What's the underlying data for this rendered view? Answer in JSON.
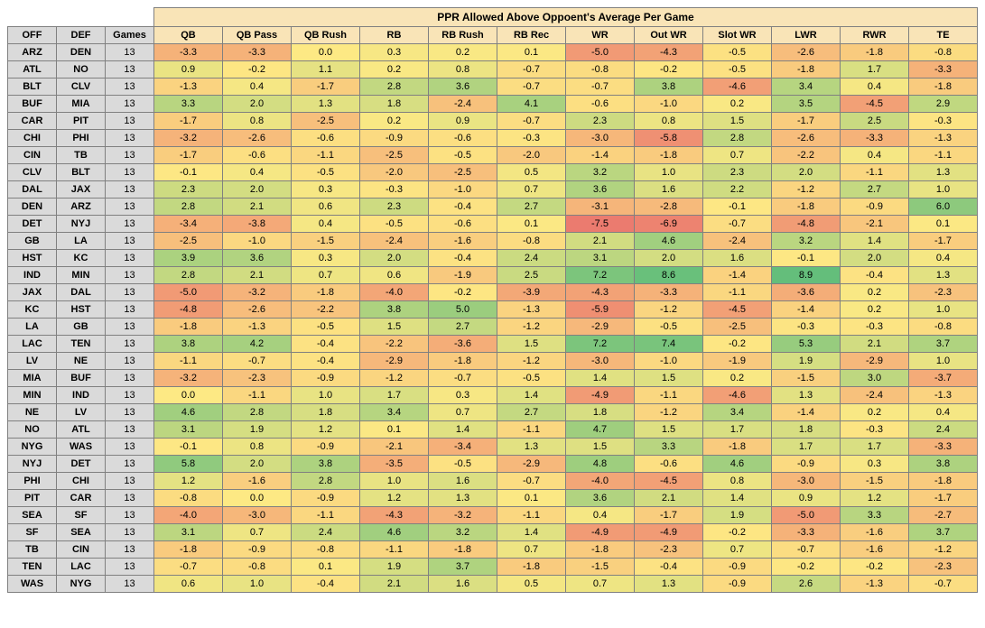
{
  "title": "PPR Allowed Above Oppoent's Average Per Game",
  "leftHeaders": [
    "OFF",
    "DEF",
    "Games"
  ],
  "dataHeaders": [
    "QB",
    "QB Pass",
    "QB Rush",
    "RB",
    "RB Rush",
    "RB Rec",
    "WR",
    "Out WR",
    "Slot WR",
    "LWR",
    "RWR",
    "TE"
  ],
  "colorScale": {
    "min": -9,
    "max": 9,
    "stops": [
      {
        "v": -9,
        "c": "#e8696b"
      },
      {
        "v": -4,
        "c": "#f3a677"
      },
      {
        "v": 0,
        "c": "#fde984"
      },
      {
        "v": 4,
        "c": "#a9d17f"
      },
      {
        "v": 9,
        "c": "#63be7b"
      }
    ]
  },
  "rows": [
    {
      "off": "ARZ",
      "def": "DEN",
      "games": 13,
      "vals": [
        -3.3,
        -3.3,
        0.0,
        0.3,
        0.2,
        0.1,
        -5.0,
        -4.3,
        -0.5,
        -2.6,
        -1.8,
        -0.8
      ]
    },
    {
      "off": "ATL",
      "def": "NO",
      "games": 13,
      "vals": [
        0.9,
        -0.2,
        1.1,
        0.2,
        0.8,
        -0.7,
        -0.8,
        -0.2,
        -0.5,
        -1.8,
        1.7,
        -3.3
      ]
    },
    {
      "off": "BLT",
      "def": "CLV",
      "games": 13,
      "vals": [
        -1.3,
        0.4,
        -1.7,
        2.8,
        3.6,
        -0.7,
        -0.7,
        3.8,
        -4.6,
        3.4,
        0.4,
        -1.8
      ]
    },
    {
      "off": "BUF",
      "def": "MIA",
      "games": 13,
      "vals": [
        3.3,
        2.0,
        1.3,
        1.8,
        -2.4,
        4.1,
        -0.6,
        -1.0,
        0.2,
        3.5,
        -4.5,
        2.9
      ]
    },
    {
      "off": "CAR",
      "def": "PIT",
      "games": 13,
      "vals": [
        -1.7,
        0.8,
        -2.5,
        0.2,
        0.9,
        -0.7,
        2.3,
        0.8,
        1.5,
        -1.7,
        2.5,
        -0.3
      ]
    },
    {
      "off": "CHI",
      "def": "PHI",
      "games": 13,
      "vals": [
        -3.2,
        -2.6,
        -0.6,
        -0.9,
        -0.6,
        -0.3,
        -3.0,
        -5.8,
        2.8,
        -2.6,
        -3.3,
        -1.3
      ]
    },
    {
      "off": "CIN",
      "def": "TB",
      "games": 13,
      "vals": [
        -1.7,
        -0.6,
        -1.1,
        -2.5,
        -0.5,
        -2.0,
        -1.4,
        -1.8,
        0.7,
        -2.2,
        0.4,
        -1.1
      ]
    },
    {
      "off": "CLV",
      "def": "BLT",
      "games": 13,
      "vals": [
        -0.1,
        0.4,
        -0.5,
        -2.0,
        -2.5,
        0.5,
        3.2,
        1.0,
        2.3,
        2.0,
        -1.1,
        1.3
      ]
    },
    {
      "off": "DAL",
      "def": "JAX",
      "games": 13,
      "vals": [
        2.3,
        2.0,
        0.3,
        -0.3,
        -1.0,
        0.7,
        3.6,
        1.6,
        2.2,
        -1.2,
        2.7,
        1.0
      ]
    },
    {
      "off": "DEN",
      "def": "ARZ",
      "games": 13,
      "vals": [
        2.8,
        2.1,
        0.6,
        2.3,
        -0.4,
        2.7,
        -3.1,
        -2.8,
        -0.1,
        -1.8,
        -0.9,
        6.0
      ]
    },
    {
      "off": "DET",
      "def": "NYJ",
      "games": 13,
      "vals": [
        -3.4,
        -3.8,
        0.4,
        -0.5,
        -0.6,
        0.1,
        -7.5,
        -6.9,
        -0.7,
        -4.8,
        -2.1,
        0.1
      ]
    },
    {
      "off": "GB",
      "def": "LA",
      "games": 13,
      "vals": [
        -2.5,
        -1.0,
        -1.5,
        -2.4,
        -1.6,
        -0.8,
        2.1,
        4.6,
        -2.4,
        3.2,
        1.4,
        -1.7
      ]
    },
    {
      "off": "HST",
      "def": "KC",
      "games": 13,
      "vals": [
        3.9,
        3.6,
        0.3,
        2.0,
        -0.4,
        2.4,
        3.1,
        2.0,
        1.6,
        -0.1,
        2.0,
        0.4
      ]
    },
    {
      "off": "IND",
      "def": "MIN",
      "games": 13,
      "vals": [
        2.8,
        2.1,
        0.7,
        0.6,
        -1.9,
        2.5,
        7.2,
        8.6,
        -1.4,
        8.9,
        -0.4,
        1.3
      ]
    },
    {
      "off": "JAX",
      "def": "DAL",
      "games": 13,
      "vals": [
        -5.0,
        -3.2,
        -1.8,
        -4.0,
        -0.2,
        -3.9,
        -4.3,
        -3.3,
        -1.1,
        -3.6,
        0.2,
        -2.3
      ]
    },
    {
      "off": "KC",
      "def": "HST",
      "games": 13,
      "vals": [
        -4.8,
        -2.6,
        -2.2,
        3.8,
        5.0,
        -1.3,
        -5.9,
        -1.2,
        -4.5,
        -1.4,
        0.2,
        1.0
      ]
    },
    {
      "off": "LA",
      "def": "GB",
      "games": 13,
      "vals": [
        -1.8,
        -1.3,
        -0.5,
        1.5,
        2.7,
        -1.2,
        -2.9,
        -0.5,
        -2.5,
        -0.3,
        -0.3,
        -0.8
      ]
    },
    {
      "off": "LAC",
      "def": "TEN",
      "games": 13,
      "vals": [
        3.8,
        4.2,
        -0.4,
        -2.2,
        -3.6,
        1.5,
        7.2,
        7.4,
        -0.2,
        5.3,
        2.1,
        3.7
      ]
    },
    {
      "off": "LV",
      "def": "NE",
      "games": 13,
      "vals": [
        -1.1,
        -0.7,
        -0.4,
        -2.9,
        -1.8,
        -1.2,
        -3.0,
        -1.0,
        -1.9,
        1.9,
        -2.9,
        1.0
      ]
    },
    {
      "off": "MIA",
      "def": "BUF",
      "games": 13,
      "vals": [
        -3.2,
        -2.3,
        -0.9,
        -1.2,
        -0.7,
        -0.5,
        1.4,
        1.5,
        0.2,
        -1.5,
        3.0,
        -3.7
      ]
    },
    {
      "off": "MIN",
      "def": "IND",
      "games": 13,
      "vals": [
        0.0,
        -1.1,
        1.0,
        1.7,
        0.3,
        1.4,
        -4.9,
        -1.1,
        -4.6,
        1.3,
        -2.4,
        -1.3
      ]
    },
    {
      "off": "NE",
      "def": "LV",
      "games": 13,
      "vals": [
        4.6,
        2.8,
        1.8,
        3.4,
        0.7,
        2.7,
        1.8,
        -1.2,
        3.4,
        -1.4,
        0.2,
        0.4
      ]
    },
    {
      "off": "NO",
      "def": "ATL",
      "games": 13,
      "vals": [
        3.1,
        1.9,
        1.2,
        0.1,
        1.4,
        -1.1,
        4.7,
        1.5,
        1.7,
        1.8,
        -0.3,
        2.4
      ]
    },
    {
      "off": "NYG",
      "def": "WAS",
      "games": 13,
      "vals": [
        -0.1,
        0.8,
        -0.9,
        -2.1,
        -3.4,
        1.3,
        1.5,
        3.3,
        -1.8,
        1.7,
        1.7,
        -3.3
      ]
    },
    {
      "off": "NYJ",
      "def": "DET",
      "games": 13,
      "vals": [
        5.8,
        2.0,
        3.8,
        -3.5,
        -0.5,
        -2.9,
        4.8,
        -0.6,
        4.6,
        -0.9,
        0.3,
        3.8
      ]
    },
    {
      "off": "PHI",
      "def": "CHI",
      "games": 13,
      "vals": [
        1.2,
        -1.6,
        2.8,
        1.0,
        1.6,
        -0.7,
        -4.0,
        -4.5,
        0.8,
        -3.0,
        -1.5,
        -1.8
      ]
    },
    {
      "off": "PIT",
      "def": "CAR",
      "games": 13,
      "vals": [
        -0.8,
        0.0,
        -0.9,
        1.2,
        1.3,
        0.1,
        3.6,
        2.1,
        1.4,
        0.9,
        1.2,
        -1.7
      ]
    },
    {
      "off": "SEA",
      "def": "SF",
      "games": 13,
      "vals": [
        -4.0,
        -3.0,
        -1.1,
        -4.3,
        -3.2,
        -1.1,
        0.4,
        -1.7,
        1.9,
        -5.0,
        3.3,
        -2.7
      ]
    },
    {
      "off": "SF",
      "def": "SEA",
      "games": 13,
      "vals": [
        3.1,
        0.7,
        2.4,
        4.6,
        3.2,
        1.4,
        -4.9,
        -4.9,
        -0.2,
        -3.3,
        -1.6,
        3.7
      ]
    },
    {
      "off": "TB",
      "def": "CIN",
      "games": 13,
      "vals": [
        -1.8,
        -0.9,
        -0.8,
        -1.1,
        -1.8,
        0.7,
        -1.8,
        -2.3,
        0.7,
        -0.7,
        -1.6,
        -1.2
      ]
    },
    {
      "off": "TEN",
      "def": "LAC",
      "games": 13,
      "vals": [
        -0.7,
        -0.8,
        0.1,
        1.9,
        3.7,
        -1.8,
        -1.5,
        -0.4,
        -0.9,
        -0.2,
        -0.2,
        -2.3
      ]
    },
    {
      "off": "WAS",
      "def": "NYG",
      "games": 13,
      "vals": [
        0.6,
        1.0,
        -0.4,
        2.1,
        1.6,
        0.5,
        0.7,
        1.3,
        -0.9,
        2.6,
        -1.3,
        -0.7
      ]
    }
  ]
}
